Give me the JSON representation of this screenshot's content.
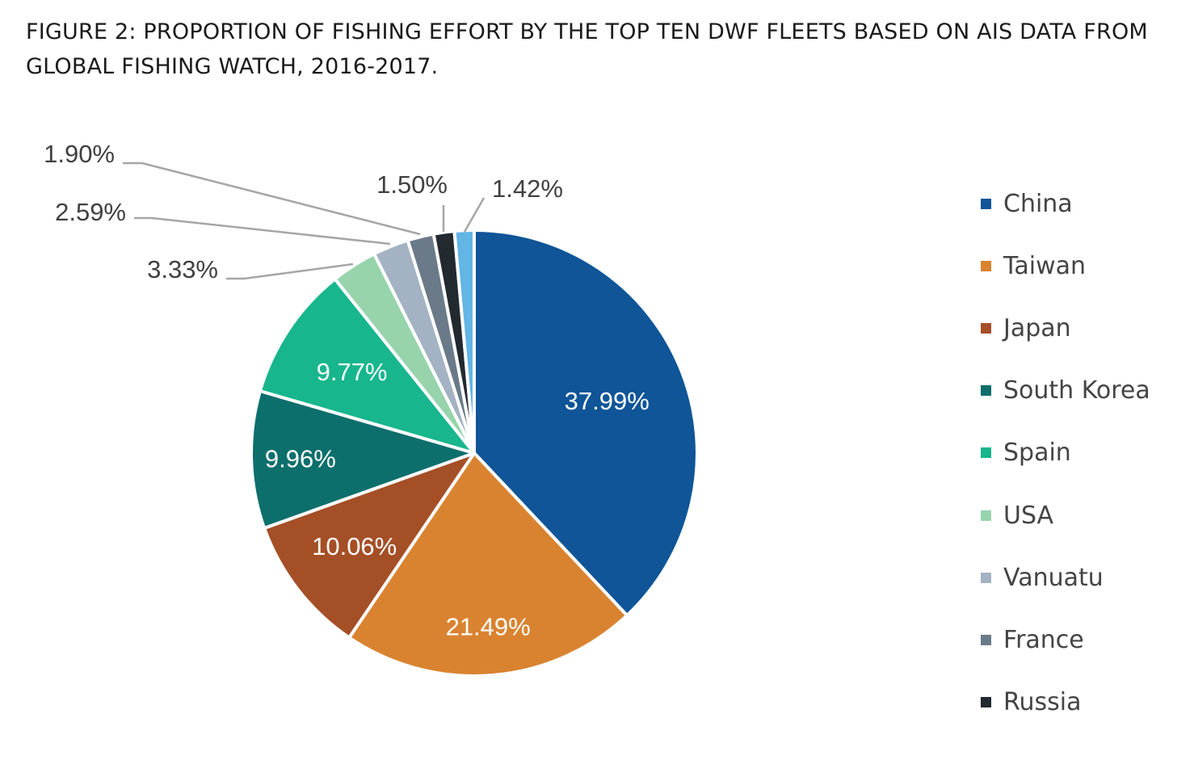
{
  "figure": {
    "title": "FIGURE 2: PROPORTION OF FISHING EFFORT BY THE TOP TEN DWF FLEETS BASED ON AIS DATA FROM GLOBAL FISHING WATCH, 2016-2017."
  },
  "chart_data": {
    "type": "pie",
    "title": "FIGURE 2: PROPORTION OF FISHING EFFORT BY THE TOP TEN DWF FLEETS BASED ON AIS DATA FROM GLOBAL FISHING WATCH, 2016-2017.",
    "legend_position": "right",
    "slices": [
      {
        "label": "China",
        "value": 37.99,
        "display": "37.99%",
        "color": "#0f5597",
        "label_color": "#ffffff",
        "in_legend": true
      },
      {
        "label": "Taiwan",
        "value": 21.49,
        "display": "21.49%",
        "color": "#d98330",
        "label_color": "#ffffff",
        "in_legend": true
      },
      {
        "label": "Japan",
        "value": 10.06,
        "display": "10.06%",
        "color": "#a54f27",
        "label_color": "#ffffff",
        "in_legend": true
      },
      {
        "label": "South Korea",
        "value": 9.96,
        "display": "9.96%",
        "color": "#0d6f6c",
        "label_color": "#ffffff",
        "in_legend": true
      },
      {
        "label": "Spain",
        "value": 9.77,
        "display": "9.77%",
        "color": "#17b68d",
        "label_color": "#ffffff",
        "in_legend": true
      },
      {
        "label": "USA",
        "value": 3.33,
        "display": "3.33%",
        "color": "#97d4ac",
        "label_color": "#404040",
        "in_legend": true
      },
      {
        "label": "Vanuatu",
        "value": 2.59,
        "display": "2.59%",
        "color": "#a3b3c3",
        "label_color": "#404040",
        "in_legend": true
      },
      {
        "label": "France",
        "value": 1.9,
        "display": "1.90%",
        "color": "#6a7a88",
        "label_color": "#404040",
        "in_legend": true
      },
      {
        "label": "Russia",
        "value": 1.5,
        "display": "1.50%",
        "color": "#22292f",
        "label_color": "#404040",
        "in_legend": true
      },
      {
        "label": "",
        "value": 1.42,
        "display": "1.42%",
        "color": "#62b5e5",
        "label_color": "#404040",
        "in_legend": false
      }
    ]
  }
}
